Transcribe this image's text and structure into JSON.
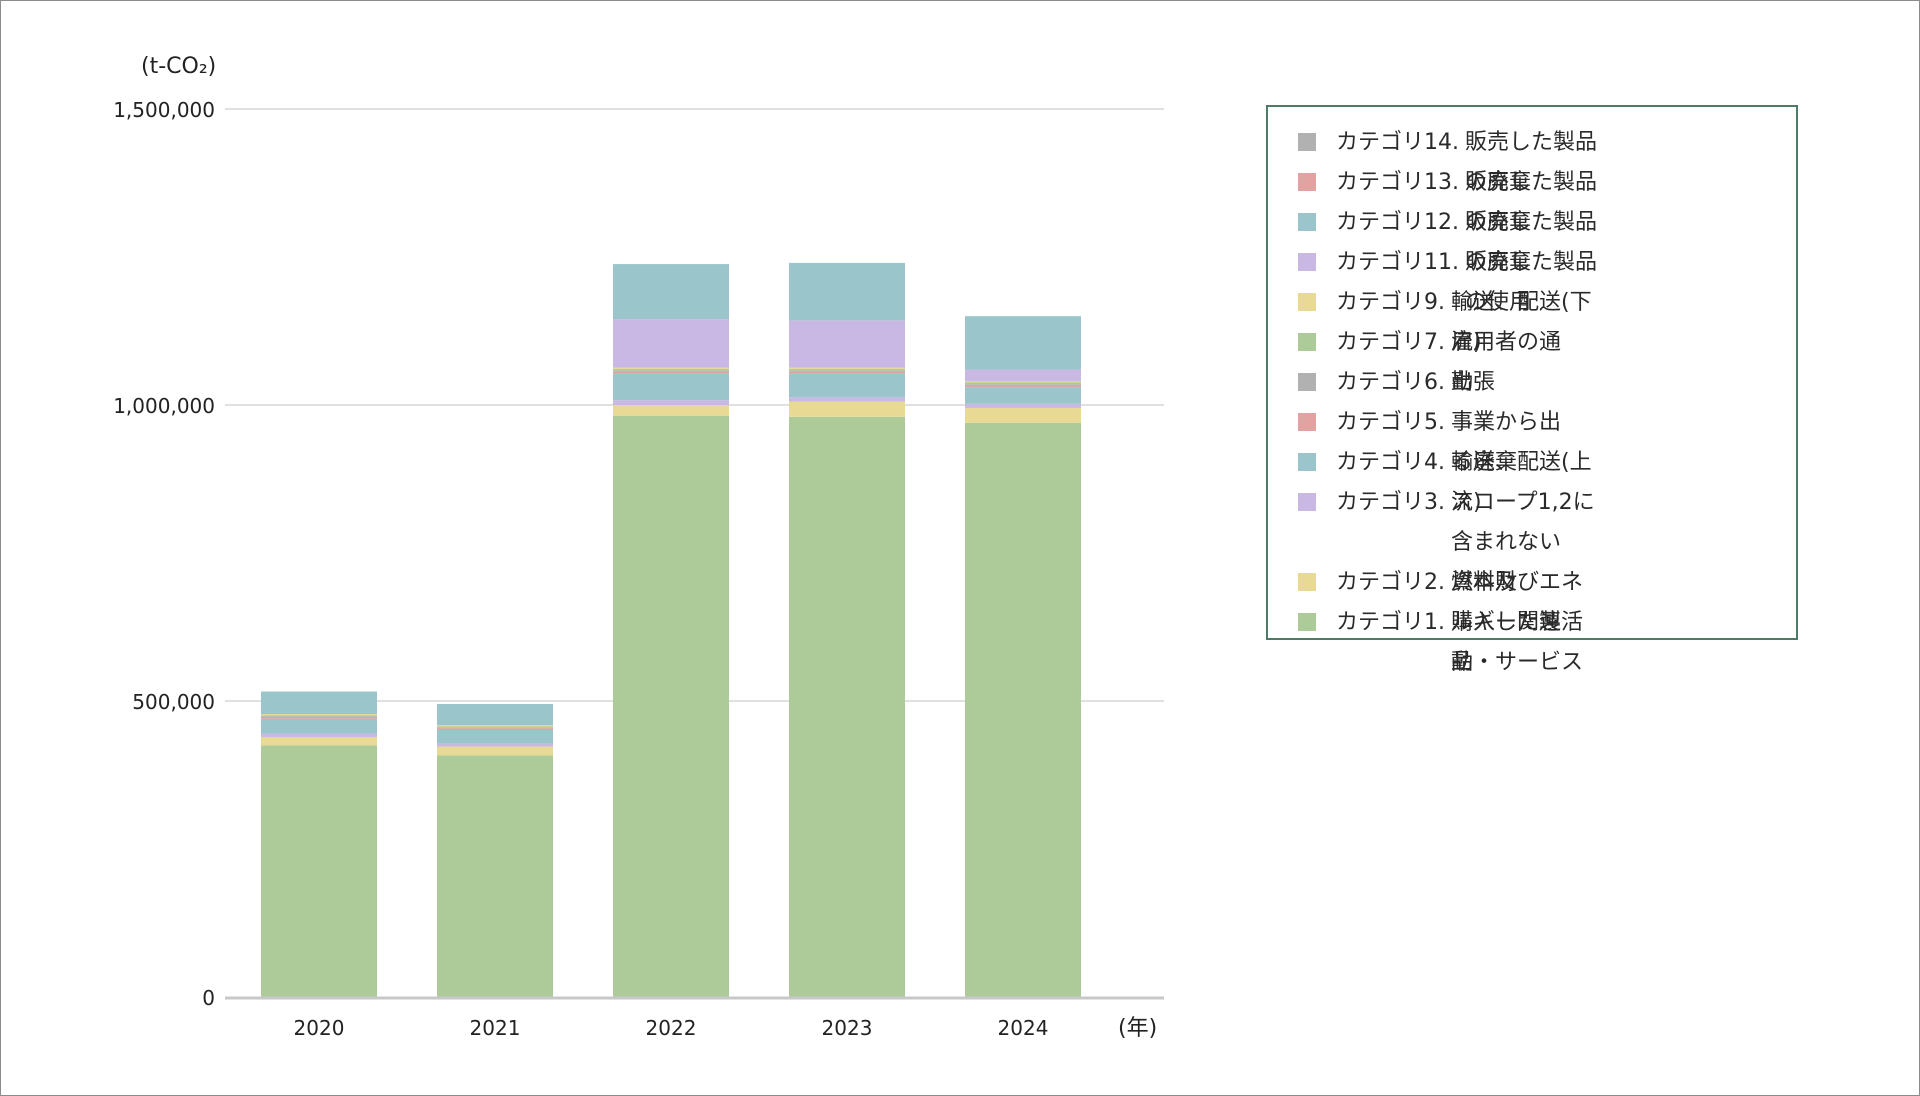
{
  "chart_data": {
    "type": "bar",
    "stacked": true,
    "unit_label": "(t-CO₂)",
    "x_unit_label": "(年)",
    "categories": [
      "2020",
      "2021",
      "2022",
      "2023",
      "2024"
    ],
    "ylim": [
      0,
      1500000
    ],
    "yticks": [
      {
        "value": 0,
        "label": "0"
      },
      {
        "value": 500000,
        "label": "500,000"
      },
      {
        "value": 1000000,
        "label": "1,000,000"
      },
      {
        "value": 1500000,
        "label": "1,500,000"
      }
    ],
    "grid": true,
    "legend_position": "right",
    "series": [
      {
        "cat": "カテゴリ1.",
        "desc": "購入した製品・サービス",
        "color": "#adcb99",
        "values": [
          425000,
          408000,
          982000,
          980000,
          970000
        ]
      },
      {
        "cat": "カテゴリ2.",
        "desc": "資本財",
        "color": "#e8d994",
        "values": [
          14000,
          15000,
          18000,
          26000,
          25000
        ]
      },
      {
        "cat": "カテゴリ3.",
        "desc": "スコープ1,2に含まれない\n燃料及びエネルギー関連活動",
        "color": "#c8b8e3",
        "values": [
          6000,
          5000,
          8000,
          7000,
          7000
        ]
      },
      {
        "cat": "カテゴリ4.",
        "desc": "輸送、配送(上流)",
        "color": "#99c5cb",
        "values": [
          25000,
          23000,
          45000,
          40000,
          28000
        ]
      },
      {
        "cat": "カテゴリ5.",
        "desc": "事業から出る廃棄",
        "color": "#e3a2a2",
        "values": [
          3000,
          3000,
          3000,
          3000,
          3000
        ]
      },
      {
        "cat": "カテゴリ6.",
        "desc": "出張",
        "color": "#b1b1b1",
        "values": [
          1000,
          1000,
          2000,
          2000,
          2000
        ]
      },
      {
        "cat": "カテゴリ7.",
        "desc": "雇用者の通勤",
        "color": "#adcb99",
        "values": [
          2000,
          2000,
          3000,
          3000,
          3000
        ]
      },
      {
        "cat": "カテゴリ9.",
        "desc": "輸送、配送(下流)",
        "color": "#e8d994",
        "values": [
          2000,
          2000,
          2000,
          2000,
          2000
        ]
      },
      {
        "cat": "カテゴリ11.",
        "desc": "販売した製品の使用",
        "color": "#c8b8e3",
        "values": [
          0,
          0,
          82000,
          80000,
          20000
        ]
      },
      {
        "cat": "カテゴリ12.",
        "desc": "販売した製品の廃棄",
        "color": "#99c5cb",
        "values": [
          38000,
          36000,
          93000,
          97000,
          90000
        ]
      },
      {
        "cat": "カテゴリ13.",
        "desc": "販売した製品の廃棄",
        "color": "#e3a2a2",
        "values": [
          0,
          0,
          0,
          0,
          0
        ]
      },
      {
        "cat": "カテゴリ14.",
        "desc": "販売した製品の廃棄",
        "color": "#b1b1b1",
        "values": [
          0,
          0,
          0,
          0,
          0
        ]
      }
    ]
  }
}
